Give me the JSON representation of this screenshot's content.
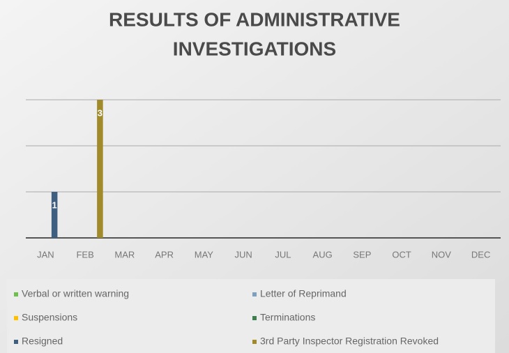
{
  "chart_data": {
    "type": "bar",
    "title": [
      "RESULTS OF ADMINISTRATIVE",
      "INVESTIGATIONS"
    ],
    "categories": [
      "JAN",
      "FEB",
      "MAR",
      "APR",
      "MAY",
      "JUN",
      "JUL",
      "AUG",
      "SEP",
      "OCT",
      "NOV",
      "DEC"
    ],
    "series": [
      {
        "name": "Verbal or written warning",
        "color": "#6fbf4f",
        "values": [
          null,
          null,
          null,
          null,
          null,
          null,
          null,
          null,
          null,
          null,
          null,
          null
        ]
      },
      {
        "name": "Letter of Reprimand",
        "color": "#7f9fbf",
        "values": [
          null,
          null,
          null,
          null,
          null,
          null,
          null,
          null,
          null,
          null,
          null,
          null
        ]
      },
      {
        "name": "Suspensions",
        "color": "#ffc000",
        "values": [
          null,
          null,
          null,
          null,
          null,
          null,
          null,
          null,
          null,
          null,
          null,
          null
        ]
      },
      {
        "name": "Terminations",
        "color": "#3f7f4f",
        "values": [
          null,
          null,
          null,
          null,
          null,
          null,
          null,
          null,
          null,
          null,
          null,
          null
        ]
      },
      {
        "name": "Resigned",
        "color": "#3f5f80",
        "values": [
          1,
          null,
          null,
          null,
          null,
          null,
          null,
          null,
          null,
          null,
          null,
          null
        ]
      },
      {
        "name": "3rd Party Inspector Registration Revoked",
        "color": "#a08a2a",
        "values": [
          null,
          3,
          null,
          null,
          null,
          null,
          null,
          null,
          null,
          null,
          null,
          null
        ]
      }
    ],
    "ylim": [
      0,
      3
    ],
    "yticks": [
      0,
      1,
      2,
      3
    ],
    "grid": true
  }
}
